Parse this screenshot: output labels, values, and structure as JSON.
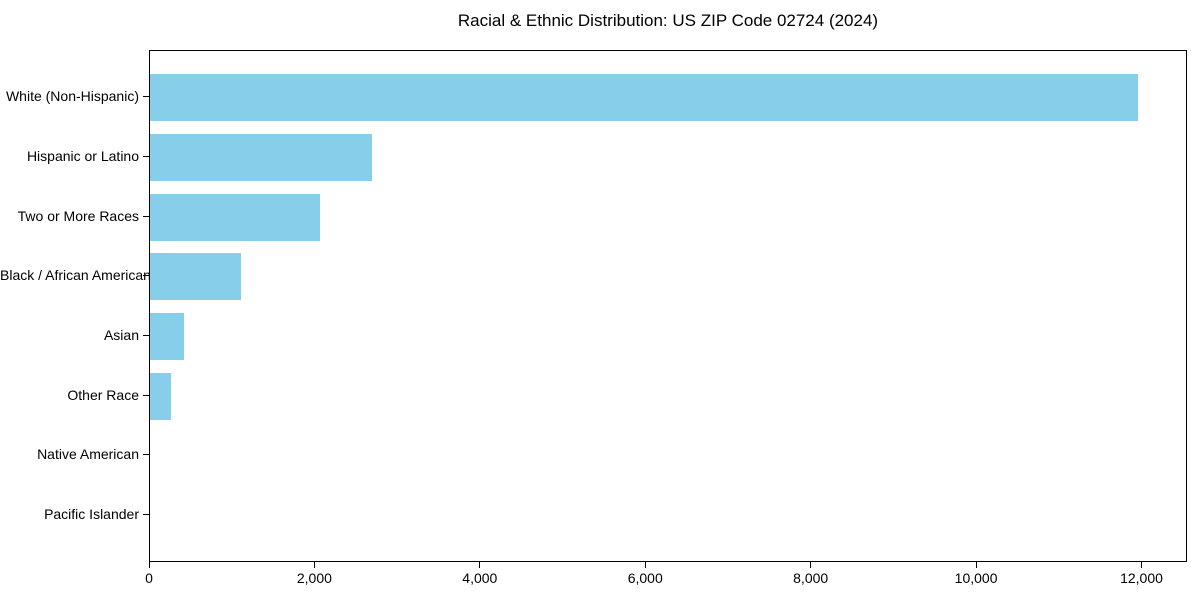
{
  "chart_data": {
    "type": "bar",
    "orientation": "horizontal",
    "title": "Racial & Ethnic Distribution: US ZIP Code 02724 (2024)",
    "categories": [
      "White (Non-Hispanic)",
      "Hispanic or Latino",
      "Two or More Races",
      "Black / African American",
      "Asian",
      "Other Race",
      "Native American",
      "Pacific Islander"
    ],
    "values": [
      11950,
      2680,
      2060,
      1105,
      410,
      250,
      0,
      0
    ],
    "xlabel": "",
    "ylabel": "",
    "xlim": [
      0,
      12550
    ],
    "xticks": [
      0,
      2000,
      4000,
      6000,
      8000,
      10000,
      12000
    ],
    "xtick_labels": [
      "0",
      "2,000",
      "4,000",
      "6,000",
      "8,000",
      "10,000",
      "12,000"
    ],
    "bar_color": "#87CEEB",
    "background_color": "#FFFFFF",
    "axis_color": "#000000",
    "grid": false,
    "legend": "none",
    "bar_height_fraction": 0.8
  }
}
